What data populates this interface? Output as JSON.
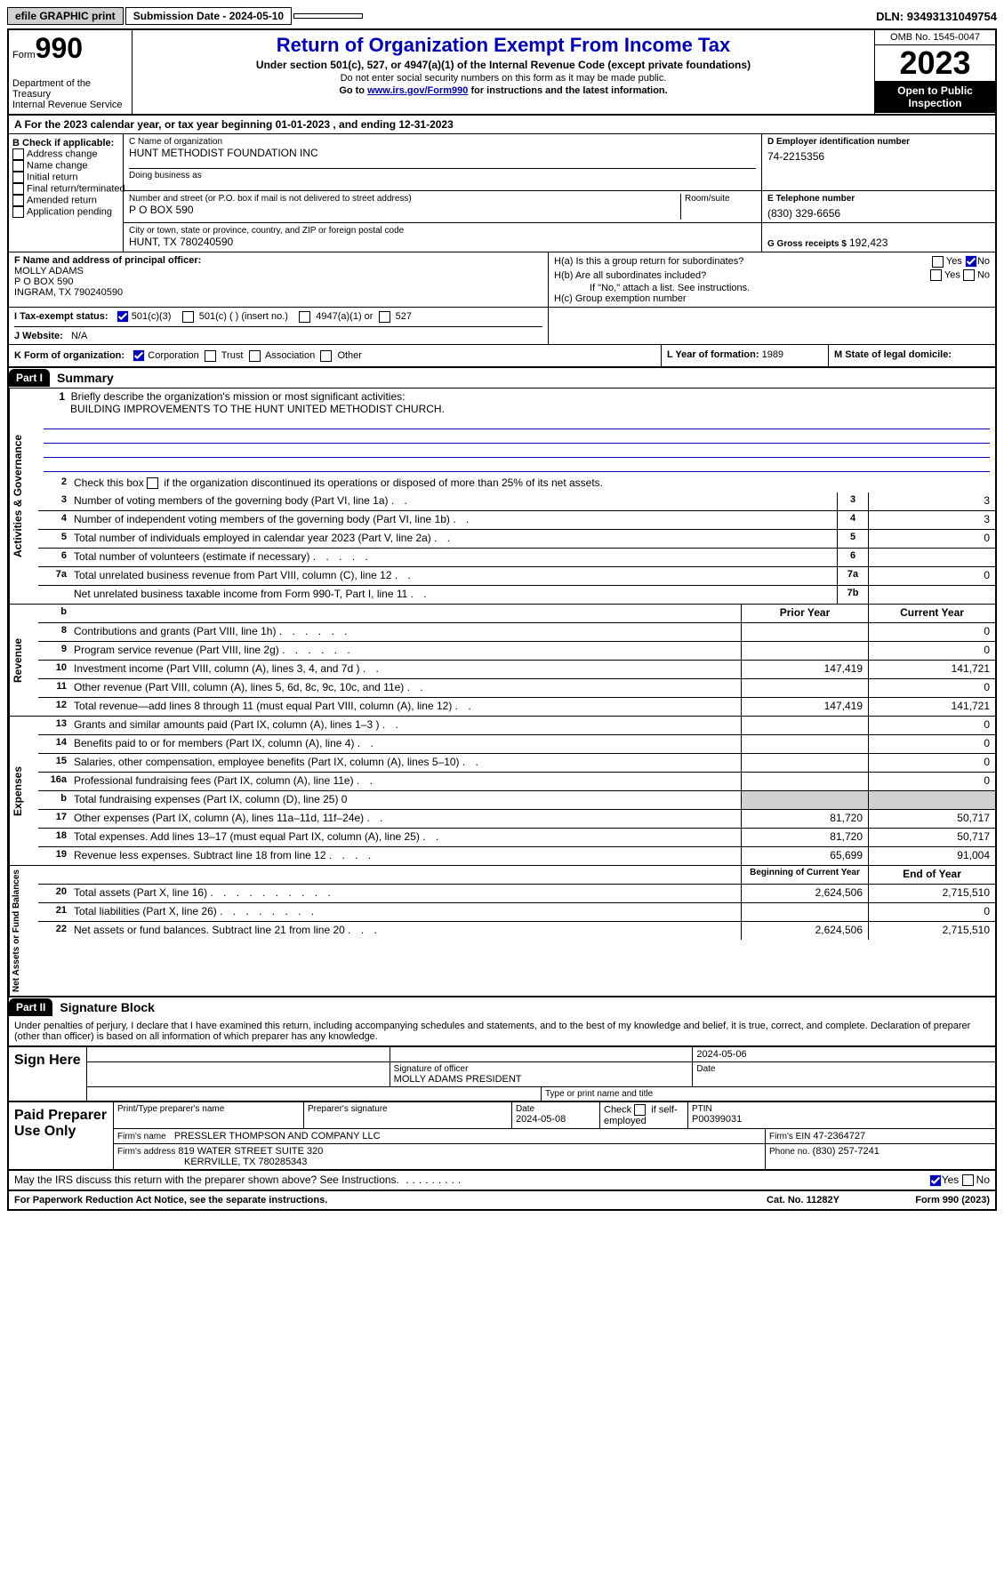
{
  "topbar": {
    "efile": "efile GRAPHIC print",
    "sub_label": "Submission Date - ",
    "sub_date": "2024-05-10",
    "dln_label": "DLN: ",
    "dln": "93493131049754"
  },
  "header": {
    "form_word": "Form",
    "form_num": "990",
    "dept": "Department of the Treasury\nInternal Revenue Service",
    "title": "Return of Organization Exempt From Income Tax",
    "sub": "Under section 501(c), 527, or 4947(a)(1) of the Internal Revenue Code (except private foundations)",
    "note1": "Do not enter social security numbers on this form as it may be made public.",
    "note2_pre": "Go to ",
    "note2_link": "www.irs.gov/Form990",
    "note2_post": " for instructions and the latest information.",
    "omb": "OMB No. 1545-0047",
    "year": "2023",
    "inspect": "Open to Public Inspection"
  },
  "rowA": "A For the 2023 calendar year, or tax year beginning 01-01-2023    , and ending 12-31-2023",
  "boxB": {
    "title": "B Check if applicable:",
    "items": [
      "Address change",
      "Name change",
      "Initial return",
      "Final return/terminated",
      "Amended return",
      "Application pending"
    ]
  },
  "boxC": {
    "lbl": "C Name of organization",
    "name": "HUNT METHODIST FOUNDATION INC",
    "dba_lbl": "Doing business as",
    "street_lbl": "Number and street (or P.O. box if mail is not delivered to street address)",
    "room_lbl": "Room/suite",
    "street": "P O BOX 590",
    "city_lbl": "City or town, state or province, country, and ZIP or foreign postal code",
    "city": "HUNT, TX  780240590"
  },
  "boxD": {
    "lbl": "D Employer identification number",
    "val": "74-2215356"
  },
  "boxE": {
    "lbl": "E Telephone number",
    "val": "(830) 329-6656"
  },
  "boxG": {
    "lbl": "G Gross receipts $",
    "val": "192,423"
  },
  "boxF": {
    "lbl": "F  Name and address of principal officer:",
    "name": "MOLLY ADAMS",
    "addr1": "P O BOX 590",
    "addr2": "INGRAM, TX  790240590"
  },
  "boxH": {
    "a": "H(a)  Is this a group return for subordinates?",
    "b": "H(b)  Are all subordinates included?",
    "bnote": "If \"No,\" attach a list. See instructions.",
    "c": "H(c)  Group exemption number"
  },
  "rowI": {
    "lbl": "I    Tax-exempt status:",
    "opts": [
      "501(c)(3)",
      "501(c) (  ) (insert no.)",
      "4947(a)(1) or",
      "527"
    ]
  },
  "rowJ": {
    "lbl": "J   Website:",
    "val": "N/A"
  },
  "rowK": {
    "lbl": "K Form of organization:",
    "opts": [
      "Corporation",
      "Trust",
      "Association",
      "Other"
    ]
  },
  "rowL": {
    "lbl": "L Year of formation:",
    "val": "1989"
  },
  "rowM": {
    "lbl": "M State of legal domicile:",
    "val": ""
  },
  "part1": {
    "hdr": "Part I",
    "title": "Summary"
  },
  "mission": {
    "lbl": "Briefly describe the organization's mission or most significant activities:",
    "text": "BUILDING IMPROVEMENTS TO THE HUNT UNITED METHODIST CHURCH."
  },
  "line2": "Check this box      if the organization discontinued its operations or disposed of more than 25% of its net assets.",
  "lines_gov": [
    {
      "n": "3",
      "t": "Number of voting members of the governing body (Part VI, line 1a)",
      "b": "3",
      "v": "3"
    },
    {
      "n": "4",
      "t": "Number of independent voting members of the governing body (Part VI, line 1b)",
      "b": "4",
      "v": "3"
    },
    {
      "n": "5",
      "t": "Total number of individuals employed in calendar year 2023 (Part V, line 2a)",
      "b": "5",
      "v": "0"
    },
    {
      "n": "6",
      "t": "Total number of volunteers (estimate if necessary)",
      "b": "6",
      "v": ""
    },
    {
      "n": "7a",
      "t": "Total unrelated business revenue from Part VIII, column (C), line 12",
      "b": "7a",
      "v": "0"
    },
    {
      "n": "",
      "t": "Net unrelated business taxable income from Form 990-T, Part I, line 11",
      "b": "7b",
      "v": ""
    }
  ],
  "rev_hdr": {
    "b": "b",
    "py": "Prior Year",
    "cy": "Current Year"
  },
  "lines_rev": [
    {
      "n": "8",
      "t": "Contributions and grants (Part VIII, line 1h)",
      "py": "",
      "cy": "0"
    },
    {
      "n": "9",
      "t": "Program service revenue (Part VIII, line 2g)",
      "py": "",
      "cy": "0"
    },
    {
      "n": "10",
      "t": "Investment income (Part VIII, column (A), lines 3, 4, and 7d )",
      "py": "147,419",
      "cy": "141,721"
    },
    {
      "n": "11",
      "t": "Other revenue (Part VIII, column (A), lines 5, 6d, 8c, 9c, 10c, and 11e)",
      "py": "",
      "cy": "0"
    },
    {
      "n": "12",
      "t": "Total revenue—add lines 8 through 11 (must equal Part VIII, column (A), line 12)",
      "py": "147,419",
      "cy": "141,721"
    }
  ],
  "lines_exp": [
    {
      "n": "13",
      "t": "Grants and similar amounts paid (Part IX, column (A), lines 1–3 )",
      "py": "",
      "cy": "0"
    },
    {
      "n": "14",
      "t": "Benefits paid to or for members (Part IX, column (A), line 4)",
      "py": "",
      "cy": "0"
    },
    {
      "n": "15",
      "t": "Salaries, other compensation, employee benefits (Part IX, column (A), lines 5–10)",
      "py": "",
      "cy": "0"
    },
    {
      "n": "16a",
      "t": "Professional fundraising fees (Part IX, column (A), line 11e)",
      "py": "",
      "cy": "0"
    },
    {
      "n": "b",
      "t": "Total fundraising expenses (Part IX, column (D), line 25) 0",
      "py": "grey",
      "cy": "grey"
    },
    {
      "n": "17",
      "t": "Other expenses (Part IX, column (A), lines 11a–11d, 11f–24e)",
      "py": "81,720",
      "cy": "50,717"
    },
    {
      "n": "18",
      "t": "Total expenses. Add lines 13–17 (must equal Part IX, column (A), line 25)",
      "py": "81,720",
      "cy": "50,717"
    },
    {
      "n": "19",
      "t": "Revenue less expenses. Subtract line 18 from line 12",
      "py": "65,699",
      "cy": "91,004"
    }
  ],
  "na_hdr": {
    "py": "Beginning of Current Year",
    "cy": "End of Year"
  },
  "lines_na": [
    {
      "n": "20",
      "t": "Total assets (Part X, line 16)",
      "py": "2,624,506",
      "cy": "2,715,510"
    },
    {
      "n": "21",
      "t": "Total liabilities (Part X, line 26)",
      "py": "",
      "cy": "0"
    },
    {
      "n": "22",
      "t": "Net assets or fund balances. Subtract line 21 from line 20",
      "py": "2,624,506",
      "cy": "2,715,510"
    }
  ],
  "vtabs": {
    "gov": "Activities & Governance",
    "rev": "Revenue",
    "exp": "Expenses",
    "na": "Net Assets or Fund Balances"
  },
  "part2": {
    "hdr": "Part II",
    "title": "Signature Block"
  },
  "perjury": "Under penalties of perjury, I declare that I have examined this return, including accompanying schedules and statements, and to the best of my knowledge and belief, it is true, correct, and complete. Declaration of preparer (other than officer) is based on all information of which preparer has any knowledge.",
  "sign": {
    "lbl": "Sign Here",
    "date": "2024-05-06",
    "sig_lbl": "Signature of officer",
    "name": "MOLLY ADAMS  PRESIDENT",
    "type_lbl": "Type or print name and title",
    "date_lbl": "Date"
  },
  "prep": {
    "lbl": "Paid Preparer Use Only",
    "h1": "Print/Type preparer's name",
    "h2": "Preparer's signature",
    "h3": "Date",
    "date": "2024-05-08",
    "h4": "Check       if self-employed",
    "h5": "PTIN",
    "ptin": "P00399031",
    "firm_lbl": "Firm's name",
    "firm": "PRESSLER THOMPSON AND COMPANY LLC",
    "ein_lbl": "Firm's EIN",
    "ein": "47-2364727",
    "addr_lbl": "Firm's address",
    "addr1": "819 WATER STREET SUITE 320",
    "addr2": "KERRVILLE, TX  780285343",
    "phone_lbl": "Phone no.",
    "phone": "(830) 257-7241"
  },
  "discuss": "May the IRS discuss this return with the preparer shown above? See Instructions.",
  "foot": {
    "l": "For Paperwork Reduction Act Notice, see the separate instructions.",
    "m": "Cat. No. 11282Y",
    "r_pre": "Form ",
    "r_num": "990",
    "r_post": " (2023)"
  }
}
